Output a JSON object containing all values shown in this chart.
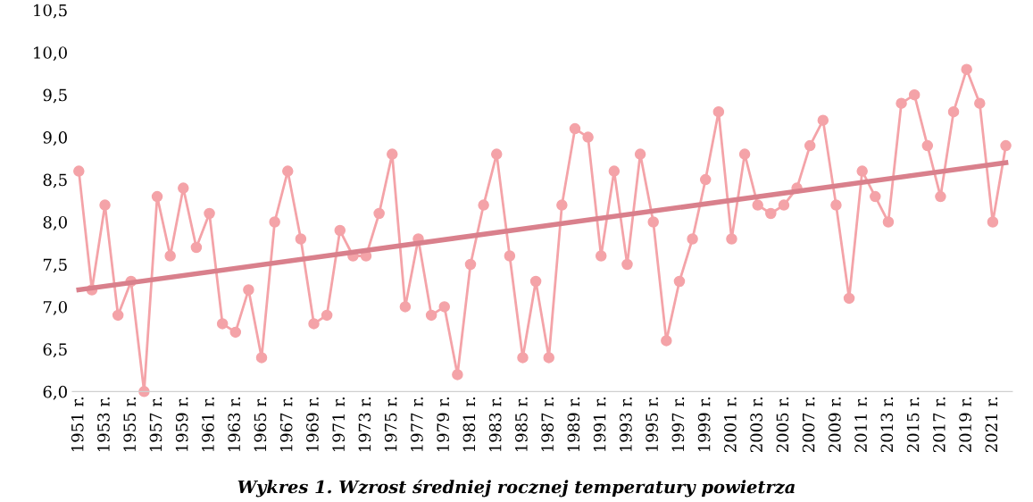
{
  "chart_data": {
    "type": "line",
    "title": "Wykres 1. Wzrost średniej rocznej temperatury powietrza",
    "x": [
      1951,
      1952,
      1953,
      1954,
      1955,
      1956,
      1957,
      1958,
      1959,
      1960,
      1961,
      1962,
      1963,
      1964,
      1965,
      1966,
      1967,
      1968,
      1969,
      1970,
      1971,
      1972,
      1973,
      1974,
      1975,
      1976,
      1977,
      1978,
      1979,
      1980,
      1981,
      1982,
      1983,
      1984,
      1985,
      1986,
      1987,
      1988,
      1989,
      1990,
      1991,
      1992,
      1993,
      1994,
      1995,
      1996,
      1997,
      1998,
      1999,
      2000,
      2001,
      2002,
      2003,
      2004,
      2005,
      2006,
      2007,
      2008,
      2009,
      2010,
      2011,
      2012,
      2013,
      2014,
      2015,
      2016,
      2017,
      2018,
      2019,
      2020,
      2021,
      2022
    ],
    "series": [
      {
        "color": "#f4a3a8",
        "marker": "circle",
        "values": [
          8.6,
          7.2,
          8.2,
          6.9,
          7.3,
          6.0,
          8.3,
          7.6,
          8.4,
          7.7,
          8.1,
          6.8,
          6.7,
          7.2,
          6.4,
          8.0,
          8.6,
          7.8,
          6.8,
          6.9,
          7.9,
          7.6,
          7.6,
          8.1,
          8.8,
          7.0,
          7.8,
          6.9,
          7.0,
          6.2,
          7.5,
          8.2,
          8.8,
          7.6,
          6.4,
          7.3,
          6.4,
          8.2,
          9.1,
          9.0,
          7.6,
          8.6,
          7.5,
          8.8,
          8.0,
          6.6,
          7.3,
          7.8,
          8.5,
          9.3,
          7.8,
          8.8,
          8.2,
          8.1,
          8.2,
          8.4,
          8.9,
          9.2,
          8.2,
          7.1,
          8.6,
          8.3,
          8.0,
          9.4,
          9.5,
          8.9,
          8.3,
          9.3,
          9.8,
          9.4,
          8.0,
          8.9
        ]
      },
      {
        "color": "#d9808c",
        "type": "line",
        "marker": "none",
        "x": [
          1951,
          2022
        ],
        "values": [
          7.2,
          8.7
        ]
      }
    ],
    "ylim": [
      6.0,
      10.5
    ],
    "xlim": [
      1950.5,
      2022.5
    ],
    "yticks": [
      {
        "value": 6.0,
        "label": "6,0"
      },
      {
        "value": 6.5,
        "label": "6,5"
      },
      {
        "value": 7.0,
        "label": "7,0"
      },
      {
        "value": 7.5,
        "label": "7,5"
      },
      {
        "value": 8.0,
        "label": "8,0"
      },
      {
        "value": 8.5,
        "label": "8,5"
      },
      {
        "value": 9.0,
        "label": "9,0"
      },
      {
        "value": 9.5,
        "label": "9,5"
      },
      {
        "value": 10.0,
        "label": "10,0"
      },
      {
        "value": 10.5,
        "label": "10,5"
      }
    ],
    "xticks": [
      {
        "value": 1951,
        "label": "1951 r."
      },
      {
        "value": 1953,
        "label": "1953 r."
      },
      {
        "value": 1955,
        "label": "1955 r."
      },
      {
        "value": 1957,
        "label": "1957 r."
      },
      {
        "value": 1959,
        "label": "1959 r."
      },
      {
        "value": 1961,
        "label": "1961 r."
      },
      {
        "value": 1963,
        "label": "1963 r."
      },
      {
        "value": 1965,
        "label": "1965 r."
      },
      {
        "value": 1967,
        "label": "1967 r."
      },
      {
        "value": 1969,
        "label": "1969 r."
      },
      {
        "value": 1971,
        "label": "1971 r."
      },
      {
        "value": 1973,
        "label": "1973 r."
      },
      {
        "value": 1975,
        "label": "1975 r."
      },
      {
        "value": 1977,
        "label": "1977 r."
      },
      {
        "value": 1979,
        "label": "1979 r."
      },
      {
        "value": 1981,
        "label": "1981 r."
      },
      {
        "value": 1983,
        "label": "1983 r."
      },
      {
        "value": 1985,
        "label": "1985 r."
      },
      {
        "value": 1987,
        "label": "1987 r."
      },
      {
        "value": 1989,
        "label": "1989 r."
      },
      {
        "value": 1991,
        "label": "1991 r."
      },
      {
        "value": 1993,
        "label": "1993 r."
      },
      {
        "value": 1995,
        "label": "1995 r."
      },
      {
        "value": 1997,
        "label": "1997 r."
      },
      {
        "value": 1999,
        "label": "1999 r."
      },
      {
        "value": 2001,
        "label": "2001 r."
      },
      {
        "value": 2003,
        "label": "2003 r."
      },
      {
        "value": 2005,
        "label": "2005 r."
      },
      {
        "value": 2007,
        "label": "2007 r."
      },
      {
        "value": 2009,
        "label": "2009 r."
      },
      {
        "value": 2011,
        "label": "2011 r."
      },
      {
        "value": 2013,
        "label": "2013 r."
      },
      {
        "value": 2015,
        "label": "2015 r."
      },
      {
        "value": 2017,
        "label": "2017 r."
      },
      {
        "value": 2019,
        "label": "2019 r."
      },
      {
        "value": 2021,
        "label": "2021 r."
      }
    ],
    "grid": false,
    "legend": false
  }
}
